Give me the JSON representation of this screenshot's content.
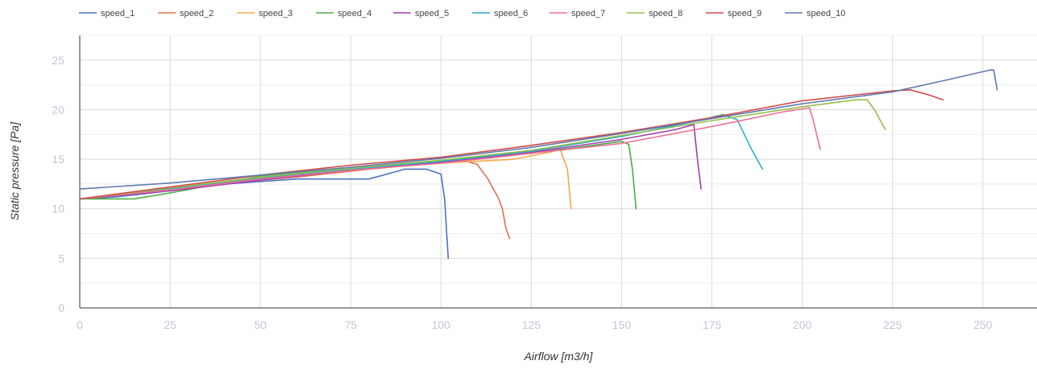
{
  "chart_data": {
    "type": "line",
    "xlabel": "Airflow [m3/h]",
    "ylabel": "Static pressure [Pa]",
    "xlim": [
      0,
      265
    ],
    "ylim": [
      0,
      27.5
    ],
    "x_ticks": [
      0,
      25,
      50,
      75,
      100,
      125,
      150,
      175,
      200,
      225,
      250
    ],
    "y_ticks": [
      0,
      5,
      10,
      15,
      20,
      25
    ],
    "grid": true,
    "legend_position": "top-left",
    "series": [
      {
        "name": "speed_1",
        "color": "#4b72c4",
        "points": [
          [
            0,
            11
          ],
          [
            10,
            11.2
          ],
          [
            20,
            11.6
          ],
          [
            40,
            12.5
          ],
          [
            60,
            13
          ],
          [
            70,
            13
          ],
          [
            80,
            13
          ],
          [
            85,
            13.5
          ],
          [
            90,
            14
          ],
          [
            96,
            14
          ],
          [
            100,
            13.5
          ],
          [
            101,
            11
          ],
          [
            102,
            5
          ]
        ]
      },
      {
        "name": "speed_2",
        "color": "#e2704b",
        "points": [
          [
            0,
            11
          ],
          [
            20,
            11.8
          ],
          [
            40,
            12.6
          ],
          [
            60,
            13.2
          ],
          [
            80,
            14
          ],
          [
            95,
            14.5
          ],
          [
            105,
            15
          ],
          [
            110,
            14.5
          ],
          [
            113,
            13
          ],
          [
            116,
            11
          ],
          [
            117,
            10
          ],
          [
            118,
            8
          ],
          [
            119,
            7
          ]
        ]
      },
      {
        "name": "speed_3",
        "color": "#f5a94a",
        "points": [
          [
            0,
            11
          ],
          [
            25,
            12
          ],
          [
            50,
            12.9
          ],
          [
            75,
            13.9
          ],
          [
            100,
            14.6
          ],
          [
            120,
            15
          ],
          [
            130,
            15.7
          ],
          [
            133,
            16
          ],
          [
            135,
            14
          ],
          [
            136,
            10
          ]
        ]
      },
      {
        "name": "speed_4",
        "color": "#4aae45",
        "points": [
          [
            0,
            11
          ],
          [
            15,
            11
          ],
          [
            25,
            11.6
          ],
          [
            50,
            13.3
          ],
          [
            75,
            14.1
          ],
          [
            100,
            14.6
          ],
          [
            125,
            15.6
          ],
          [
            140,
            16.3
          ],
          [
            150,
            16.8
          ],
          [
            152,
            16.5
          ],
          [
            153,
            14
          ],
          [
            154,
            10
          ]
        ]
      },
      {
        "name": "speed_5",
        "color": "#a63aad",
        "points": [
          [
            0,
            11
          ],
          [
            25,
            11.8
          ],
          [
            50,
            12.9
          ],
          [
            75,
            13.9
          ],
          [
            100,
            14.7
          ],
          [
            125,
            15.7
          ],
          [
            150,
            17
          ],
          [
            165,
            18
          ],
          [
            170,
            18.5
          ],
          [
            171,
            15
          ],
          [
            172,
            12
          ]
        ]
      },
      {
        "name": "speed_6",
        "color": "#2aacd0",
        "points": [
          [
            0,
            11
          ],
          [
            25,
            12
          ],
          [
            50,
            13.1
          ],
          [
            75,
            14
          ],
          [
            100,
            14.8
          ],
          [
            125,
            15.8
          ],
          [
            150,
            17.3
          ],
          [
            170,
            18.8
          ],
          [
            178,
            19.5
          ],
          [
            182,
            19
          ],
          [
            186,
            16
          ],
          [
            189,
            14
          ]
        ]
      },
      {
        "name": "speed_7",
        "color": "#ec6e95",
        "points": [
          [
            0,
            11
          ],
          [
            25,
            11.9
          ],
          [
            50,
            13
          ],
          [
            75,
            13.9
          ],
          [
            100,
            14.6
          ],
          [
            125,
            15.6
          ],
          [
            150,
            16.6
          ],
          [
            175,
            18.3
          ],
          [
            195,
            19.8
          ],
          [
            202,
            20.2
          ],
          [
            203,
            19
          ],
          [
            205,
            16
          ]
        ]
      },
      {
        "name": "speed_8",
        "color": "#96bf48",
        "points": [
          [
            0,
            11
          ],
          [
            25,
            12.1
          ],
          [
            50,
            13.2
          ],
          [
            75,
            14.1
          ],
          [
            100,
            14.9
          ],
          [
            125,
            15.9
          ],
          [
            150,
            17.4
          ],
          [
            175,
            18.9
          ],
          [
            200,
            20.3
          ],
          [
            215,
            21
          ],
          [
            218,
            21
          ],
          [
            220,
            20
          ],
          [
            223,
            18
          ]
        ]
      },
      {
        "name": "speed_9",
        "color": "#d34a4a",
        "points": [
          [
            0,
            11
          ],
          [
            25,
            12.2
          ],
          [
            50,
            13.4
          ],
          [
            75,
            14.4
          ],
          [
            100,
            15.2
          ],
          [
            125,
            16.4
          ],
          [
            150,
            17.7
          ],
          [
            175,
            19.2
          ],
          [
            200,
            20.9
          ],
          [
            225,
            21.9
          ],
          [
            230,
            22
          ],
          [
            235,
            21.5
          ],
          [
            239,
            21
          ]
        ]
      },
      {
        "name": "speed_10",
        "color": "#5f7bb0",
        "points": [
          [
            0,
            12
          ],
          [
            25,
            12.6
          ],
          [
            50,
            13.4
          ],
          [
            75,
            14.2
          ],
          [
            100,
            15.1
          ],
          [
            125,
            16.2
          ],
          [
            150,
            17.6
          ],
          [
            175,
            19.1
          ],
          [
            200,
            20.6
          ],
          [
            225,
            21.8
          ],
          [
            240,
            23
          ],
          [
            252,
            24
          ],
          [
            253,
            24
          ],
          [
            254,
            22
          ]
        ]
      }
    ]
  }
}
